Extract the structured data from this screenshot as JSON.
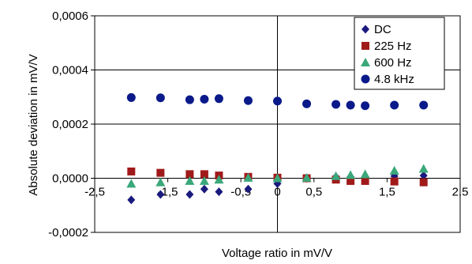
{
  "chart_data": {
    "type": "scatter",
    "xlabel": "Voltage ratio in mV/V",
    "ylabel": "Absolute deviation in mV/V",
    "xlim": [
      -2.5,
      2.5
    ],
    "ylim": [
      -0.0002,
      0.0006
    ],
    "x_ticks": [
      "-2,5",
      "-1,5",
      "-0,5",
      "0",
      "0,5",
      "1,5",
      "2,5"
    ],
    "x_tick_values": [
      -2.5,
      -1.5,
      -0.5,
      0,
      0.5,
      1.5,
      2.5
    ],
    "y_ticks": [
      "-0,0002",
      "0,0000",
      "0,0002",
      "0,0004",
      "0,0006"
    ],
    "y_tick_values": [
      -0.0002,
      0.0,
      0.0002,
      0.0004,
      0.0006
    ],
    "grid": "horizontal",
    "legend_position": "top-right",
    "series": [
      {
        "name": "DC",
        "marker": "diamond",
        "color": "#1a1a7e",
        "x": [
          -2,
          -1.6,
          -1.2,
          -1,
          -0.8,
          -0.4,
          0,
          0.4,
          0.8,
          1,
          1.2,
          1.6,
          2
        ],
        "y": [
          -8e-05,
          -6e-05,
          -6e-05,
          -4e-05,
          -5e-05,
          -4e-05,
          -2e-05,
          0.0,
          5e-06,
          5e-06,
          5e-06,
          8e-06,
          1e-05
        ]
      },
      {
        "name": "225 Hz",
        "marker": "square",
        "color": "#a01a1a",
        "x": [
          -2,
          -1.6,
          -1.2,
          -1,
          -0.8,
          -0.4,
          0,
          0.4,
          0.8,
          1,
          1.2,
          1.6,
          2
        ],
        "y": [
          2.5e-05,
          2e-05,
          1.5e-05,
          1.5e-05,
          1e-05,
          5e-06,
          2e-06,
          0.0,
          -5e-06,
          -1e-05,
          -1e-05,
          -1.2e-05,
          -1.5e-05
        ]
      },
      {
        "name": "600 Hz",
        "marker": "triangle",
        "color": "#3aa87a",
        "x": [
          -2,
          -1.6,
          -1.2,
          -1,
          -0.8,
          -0.4,
          0,
          0.4,
          0.8,
          1,
          1.2,
          1.6,
          2
        ],
        "y": [
          -2e-05,
          -1.5e-05,
          -1e-05,
          -1e-05,
          -5e-06,
          2e-06,
          0.0,
          2e-06,
          8e-06,
          1.2e-05,
          1.5e-05,
          2.8e-05,
          3.5e-05
        ]
      },
      {
        "name": "4.8 kHz",
        "marker": "circle",
        "color": "#0a1a8a",
        "x": [
          -2,
          -1.6,
          -1.2,
          -1,
          -0.8,
          -0.4,
          0,
          0.4,
          0.8,
          1,
          1.2,
          1.6,
          2
        ],
        "y": [
          0.000298,
          0.000297,
          0.00029,
          0.000292,
          0.000294,
          0.000287,
          0.000285,
          0.000275,
          0.000273,
          0.00027,
          0.000268,
          0.00027,
          0.00027
        ]
      }
    ]
  }
}
